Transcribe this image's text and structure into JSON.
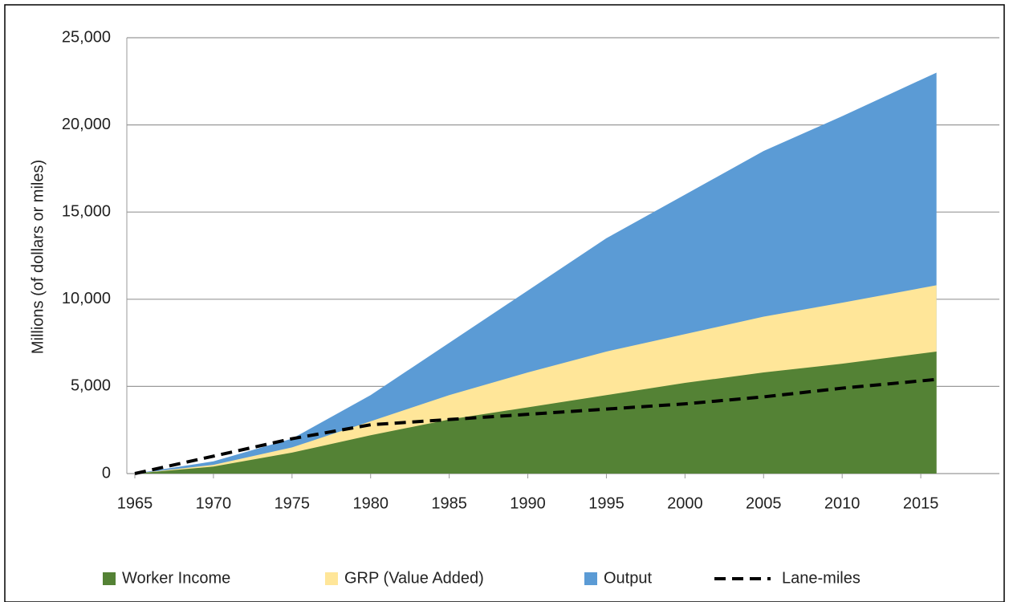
{
  "chart_data": {
    "type": "area",
    "y_label": "Millions (of dollars or miles)",
    "x": [
      1965,
      1970,
      1975,
      1980,
      1985,
      1990,
      1995,
      2000,
      2005,
      2010,
      2016
    ],
    "series": [
      {
        "name": "Output",
        "kind": "area",
        "color": "#5b9bd5",
        "values": [
          0,
          700,
          2000,
          4500,
          7500,
          10500,
          13500,
          16000,
          18500,
          20500,
          23000
        ]
      },
      {
        "name": "GRP (Value Added)",
        "kind": "area",
        "color": "#ffe699",
        "values": [
          0,
          500,
          1500,
          3000,
          4500,
          5800,
          7000,
          8000,
          9000,
          9800,
          10800
        ]
      },
      {
        "name": "Worker Income",
        "kind": "area",
        "color": "#548235",
        "values": [
          0,
          400,
          1200,
          2200,
          3100,
          3800,
          4500,
          5200,
          5800,
          6300,
          7000
        ]
      },
      {
        "name": "Lane-miles",
        "kind": "line",
        "dashed": true,
        "color": "#000000",
        "values": [
          0,
          1000,
          2000,
          2800,
          3100,
          3400,
          3700,
          4000,
          4400,
          4900,
          5400
        ]
      }
    ],
    "legend_order": [
      2,
      1,
      0,
      3
    ],
    "xlim": [
      1965,
      2020
    ],
    "xticks": [
      1965,
      1970,
      1975,
      1980,
      1985,
      1990,
      1995,
      2000,
      2005,
      2010,
      2015
    ],
    "ylim": [
      0,
      25000
    ],
    "yticks": [
      0,
      {
        "value": 5000,
        "label": "5,000"
      },
      {
        "value": 10000,
        "label": "10,000"
      },
      {
        "value": 15000,
        "label": "15,000"
      },
      {
        "value": 20000,
        "label": "20,000"
      },
      {
        "value": 25000,
        "label": "25,000"
      }
    ],
    "grid": true
  }
}
